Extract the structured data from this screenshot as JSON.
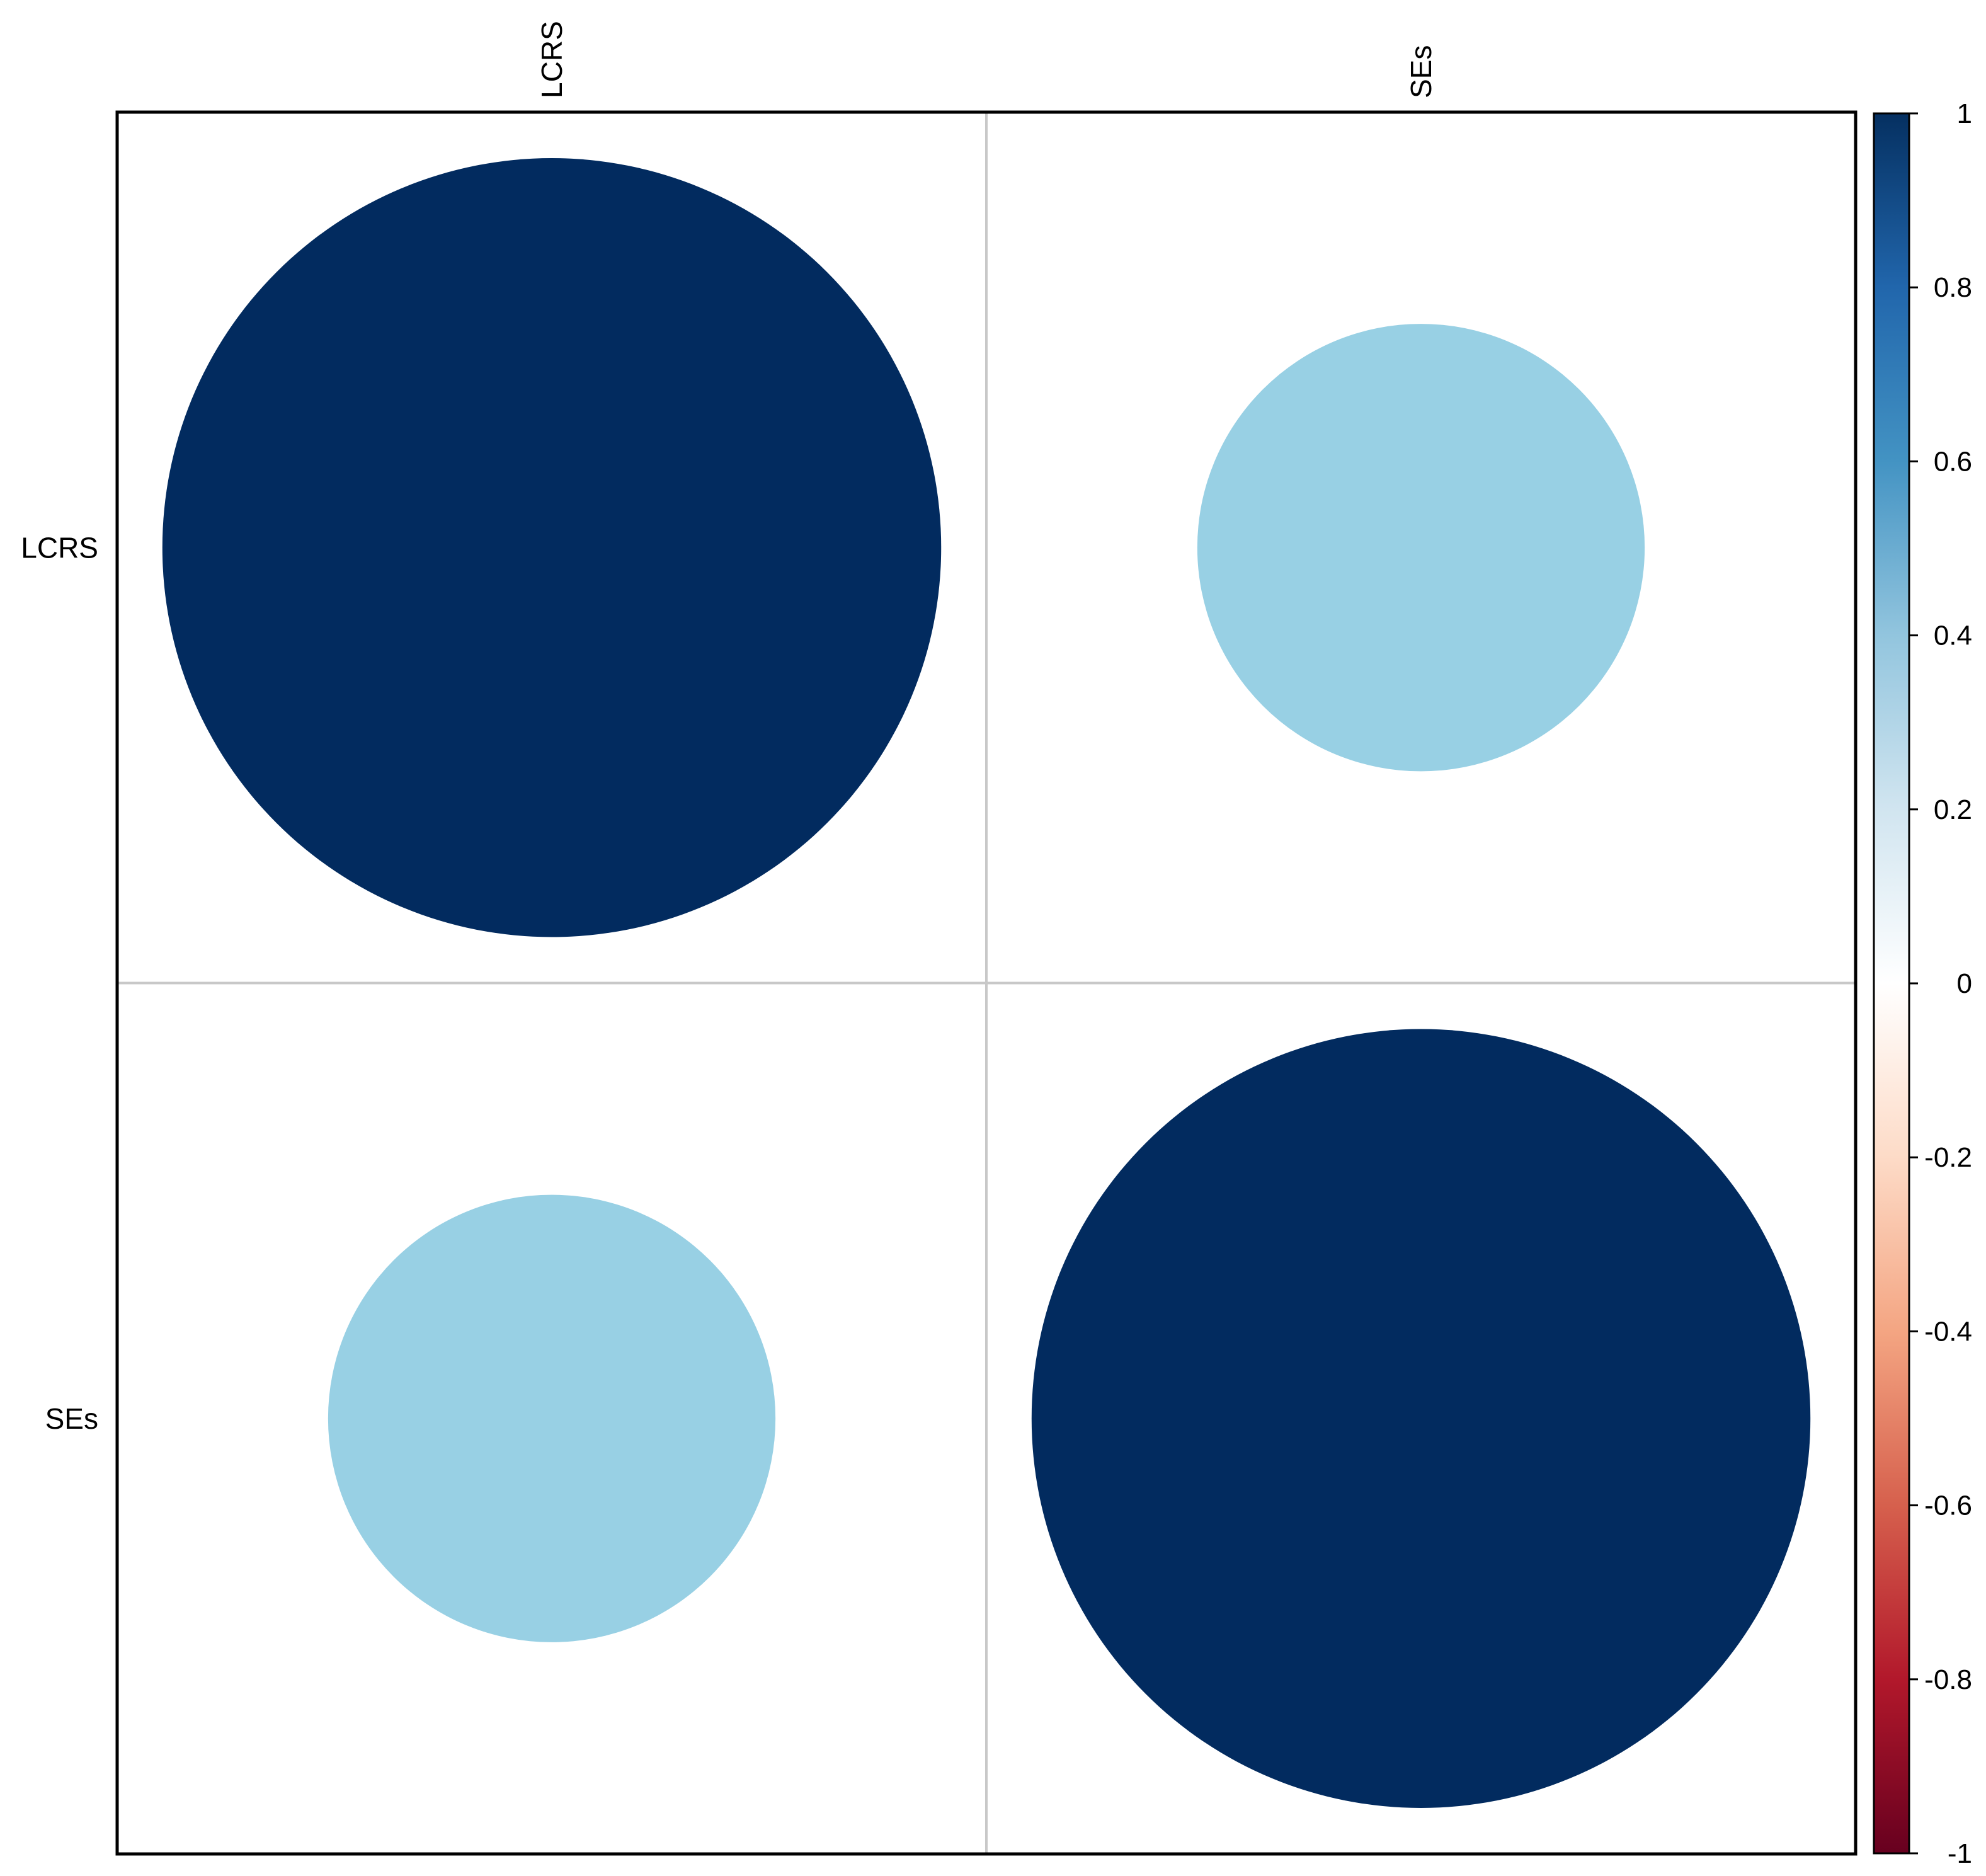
{
  "chart_data": {
    "type": "heatmap",
    "subtype": "correlation-circles",
    "variables": [
      "LCRS",
      "SEs"
    ],
    "matrix": [
      [
        1.0,
        0.33
      ],
      [
        0.33,
        1.0
      ]
    ],
    "color_scale": {
      "min": -1,
      "max": 1,
      "ticks": [
        "1",
        "0.8",
        "0.6",
        "0.4",
        "0.2",
        "0",
        "-0.2",
        "-0.4",
        "-0.6",
        "-0.8",
        "-1"
      ],
      "tick_values": [
        1,
        0.8,
        0.6,
        0.4,
        0.2,
        0,
        -0.2,
        -0.4,
        -0.6,
        -0.8,
        -1
      ],
      "stops": [
        {
          "value": -1.0,
          "color": "#67001F"
        },
        {
          "value": -0.8,
          "color": "#B2182B"
        },
        {
          "value": -0.6,
          "color": "#D6604D"
        },
        {
          "value": -0.4,
          "color": "#F4A582"
        },
        {
          "value": -0.2,
          "color": "#FDDBC7"
        },
        {
          "value": 0.0,
          "color": "#FFFFFF"
        },
        {
          "value": 0.2,
          "color": "#D1E5F0"
        },
        {
          "value": 0.4,
          "color": "#92C5DE"
        },
        {
          "value": 0.6,
          "color": "#4393C3"
        },
        {
          "value": 0.8,
          "color": "#2166AC"
        },
        {
          "value": 1.0,
          "color": "#053061"
        }
      ]
    },
    "legend_position": "right",
    "grid": true,
    "title": "",
    "xlabel": "",
    "ylabel": ""
  },
  "colors": {
    "strong_positive": "#022B5F",
    "weak_positive": "#98D0E4",
    "grid_line": "#C8C8C8",
    "frame": "#000000"
  }
}
